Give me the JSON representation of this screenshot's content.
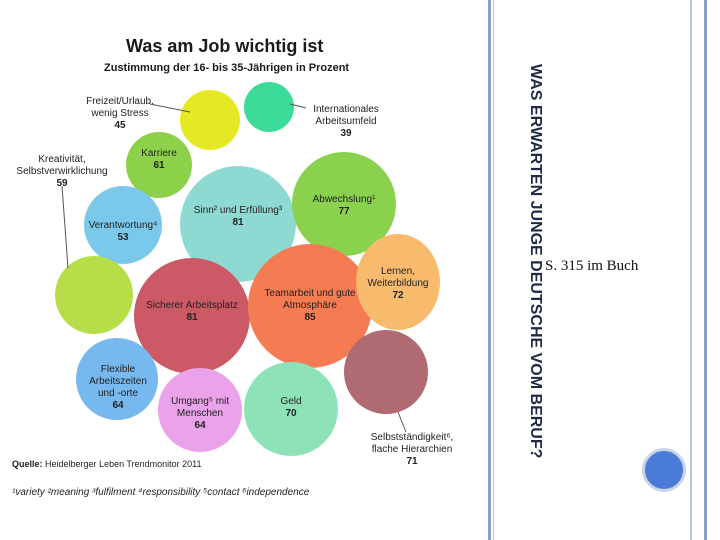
{
  "infographic": {
    "title": "Was am Job wichtig ist",
    "subtitle": "Zustimmung der 16- bis 35-Jährigen in Prozent",
    "bubbles": [
      {
        "label": "Karriere",
        "value": "61",
        "color": "#8dd14b"
      },
      {
        "label": "",
        "value": "",
        "color": "#e5e923"
      },
      {
        "label": "",
        "value": "",
        "color": "#3ddb9a"
      },
      {
        "label": "Verantwortung⁴",
        "value": "53",
        "color": "#7bc9ea"
      },
      {
        "label": "Sinn² und Erfüllung³",
        "value": "81",
        "color": "#8fd9d3"
      },
      {
        "label": "Abwechslung¹",
        "value": "77",
        "color": "#8ad24e"
      },
      {
        "label": "",
        "value": "",
        "color": "#b7dd49"
      },
      {
        "label": "Sicherer Arbeitsplatz",
        "value": "81",
        "color": "#cc5a66"
      },
      {
        "label": "Teamarbeit und gute Atmosphäre",
        "value": "85",
        "color": "#f47b52"
      },
      {
        "label": "Lernen, Weiterbildung",
        "value": "72",
        "color": "#f8bb6e"
      },
      {
        "label": "Flexible Arbeitszeiten und -orte",
        "value": "64",
        "color": "#77b8ee"
      },
      {
        "label": "Umgang⁵ mit Menschen",
        "value": "64",
        "color": "#eaa2ea"
      },
      {
        "label": "Geld",
        "value": "70",
        "color": "#8de2b8"
      },
      {
        "label": "",
        "value": "",
        "color": "#b06a72"
      }
    ],
    "external_labels": [
      {
        "label": "Freizeit/Urlaub, wenig Stress",
        "value": "45"
      },
      {
        "label": "Internationales Arbeitsumfeld",
        "value": "39"
      },
      {
        "label": "Kreativität, Selbstverwirklichung",
        "value": "59"
      },
      {
        "label": "Selbstständigkeit⁶, flache Hierarchien",
        "value": "71"
      }
    ],
    "source_label": "Quelle:",
    "source_text": "Heidelberger Leben Trendmonitor 2011",
    "footnotes": "¹variety ²meaning ³fulfilment ⁴responsibility ⁵contact ⁶independence"
  },
  "slide": {
    "vertical_title": "WAS ERWARTEN JUNGE DEUTSCHE VOM BERUF?",
    "reference": "S. 315 im Buch"
  },
  "colors": {
    "rail_blue": "#8aa0c8",
    "nav_dot": "#4a7bd6"
  }
}
